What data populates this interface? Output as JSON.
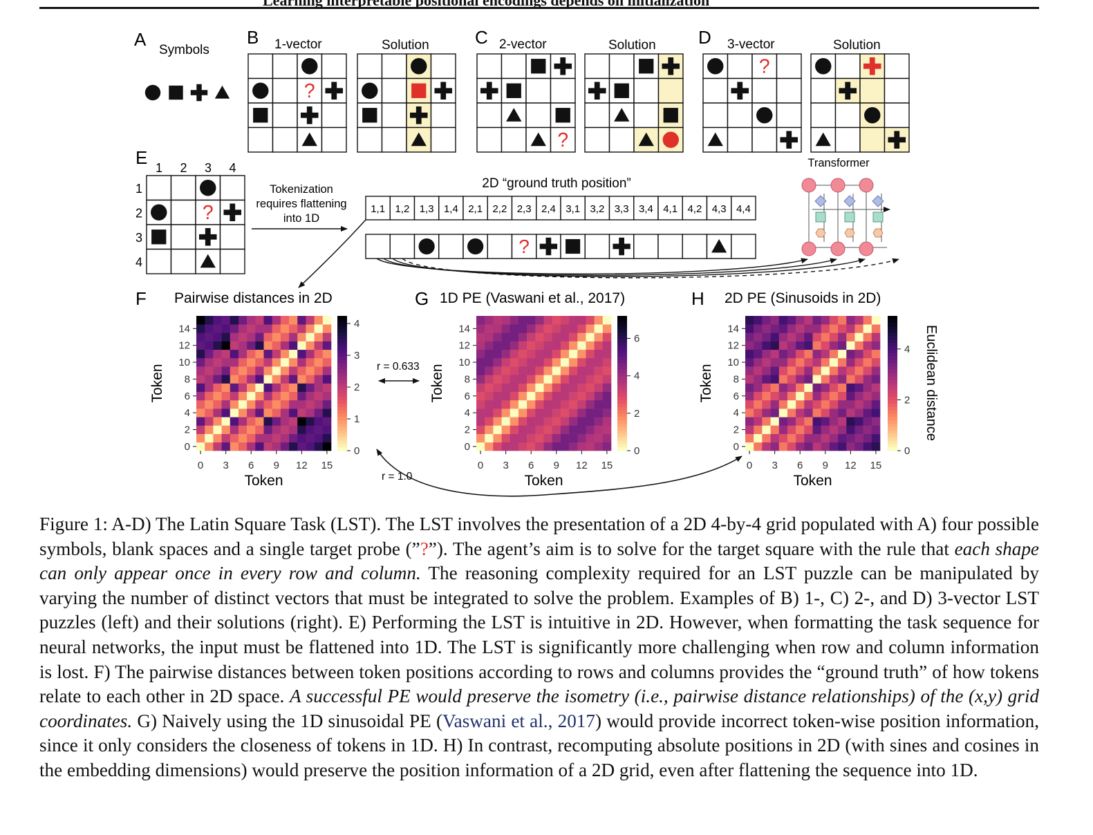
{
  "header": {
    "running_title": "Learning interpretable positional encodings depends on initialization"
  },
  "panels": {
    "A": {
      "letter": "A",
      "title": "Symbols",
      "symbols": [
        "circle",
        "square",
        "cross",
        "triangle"
      ]
    },
    "B": {
      "letter": "B",
      "title": "1-vector",
      "solution_title": "Solution",
      "puzzle": [
        [
          "",
          "",
          "circle",
          ""
        ],
        [
          "circle",
          "",
          "?",
          "cross"
        ],
        [
          "square",
          "",
          "cross",
          ""
        ],
        [
          "",
          "",
          "triangle",
          ""
        ]
      ],
      "solution": [
        [
          "",
          "",
          "circle",
          ""
        ],
        [
          "circle",
          "",
          "square-red",
          "cross"
        ],
        [
          "square",
          "",
          "cross",
          ""
        ],
        [
          "",
          "",
          "triangle",
          ""
        ]
      ],
      "highlight": [
        [
          0,
          2
        ],
        [
          1,
          2
        ],
        [
          2,
          2
        ],
        [
          3,
          2
        ]
      ]
    },
    "C": {
      "letter": "C",
      "title": "2-vector",
      "solution_title": "Solution",
      "puzzle": [
        [
          "",
          "",
          "square",
          "cross"
        ],
        [
          "cross",
          "square",
          "",
          ""
        ],
        [
          "",
          "triangle",
          "",
          "square"
        ],
        [
          "",
          "",
          "triangle",
          "?"
        ]
      ],
      "solution": [
        [
          "",
          "",
          "square",
          "cross"
        ],
        [
          "cross",
          "square",
          "",
          ""
        ],
        [
          "",
          "triangle",
          "",
          "square"
        ],
        [
          "",
          "",
          "triangle",
          "circle-red"
        ]
      ],
      "highlight": [
        [
          0,
          3
        ],
        [
          1,
          3
        ],
        [
          2,
          3
        ],
        [
          3,
          3
        ],
        [
          3,
          2
        ]
      ]
    },
    "D": {
      "letter": "D",
      "title": "3-vector",
      "solution_title": "Solution",
      "puzzle": [
        [
          "circle",
          "",
          "?",
          ""
        ],
        [
          "",
          "cross",
          "",
          ""
        ],
        [
          "",
          "",
          "circle",
          ""
        ],
        [
          "triangle",
          "",
          "",
          "cross"
        ]
      ],
      "solution": [
        [
          "circle",
          "",
          "cross-red",
          ""
        ],
        [
          "",
          "cross",
          "",
          ""
        ],
        [
          "",
          "",
          "circle",
          ""
        ],
        [
          "triangle",
          "",
          "",
          "cross"
        ]
      ],
      "highlight": [
        [
          0,
          2
        ],
        [
          1,
          1
        ],
        [
          1,
          2
        ],
        [
          2,
          2
        ],
        [
          3,
          2
        ],
        [
          3,
          3
        ]
      ]
    },
    "E": {
      "letter": "E",
      "col_labels": [
        "1",
        "2",
        "3",
        "4"
      ],
      "row_labels": [
        "1",
        "2",
        "3",
        "4"
      ],
      "grid": [
        [
          "",
          "",
          "circle",
          ""
        ],
        [
          "circle",
          "",
          "?",
          "cross"
        ],
        [
          "square",
          "",
          "cross",
          ""
        ],
        [
          "",
          "",
          "triangle",
          ""
        ]
      ],
      "arrow_text": [
        "Tokenization",
        "requires flattening",
        "into 1D"
      ],
      "sequence_title": "2D “ground truth position”",
      "positions": [
        "1,1",
        "1,2",
        "1,3",
        "1,4",
        "2,1",
        "2,2",
        "2,3",
        "2,4",
        "3,1",
        "3,2",
        "3,3",
        "3,4",
        "4,1",
        "4,2",
        "4,3",
        "4,4"
      ],
      "tokens": [
        "",
        "",
        "circle",
        "",
        "circle",
        "",
        "?",
        "cross",
        "square",
        "",
        "cross",
        "",
        "",
        "",
        "triangle",
        ""
      ],
      "transformer_label": "Transformer"
    },
    "F": {
      "letter": "F",
      "title": "Pairwise distances in 2D"
    },
    "G": {
      "letter": "G",
      "title": "1D PE (Vaswani et al., 2017)"
    },
    "H": {
      "letter": "H",
      "title": "2D PE (Sinusoids in 2D)",
      "colorbar_label": "Euclidean distance"
    },
    "annotations": {
      "r_fg": "r = 0.633",
      "r_fh": "r = 1.0"
    }
  },
  "chart_data": [
    {
      "type": "heatmap",
      "title": "Pairwise distances in 2D",
      "xlabel": "Token",
      "ylabel": "Token",
      "x_ticks": [
        0,
        3,
        6,
        9,
        12,
        15
      ],
      "y_ticks": [
        0,
        2,
        4,
        6,
        8,
        10,
        12,
        14
      ],
      "n": 16,
      "metric": "grid-euclidean",
      "colorbar": {
        "min": 0,
        "max": 4.24,
        "ticks": [
          0,
          1,
          2,
          3,
          4
        ]
      }
    },
    {
      "type": "heatmap",
      "title": "1D PE (Vaswani et al., 2017)",
      "xlabel": "Token",
      "ylabel": "Token",
      "x_ticks": [
        0,
        3,
        6,
        9,
        12,
        15
      ],
      "y_ticks": [
        0,
        2,
        4,
        6,
        8,
        10,
        12,
        14
      ],
      "n": 16,
      "metric": "1d-sinusoid-distance",
      "colorbar": {
        "min": 0,
        "max": 7.2,
        "ticks": [
          0,
          2,
          4,
          6
        ]
      }
    },
    {
      "type": "heatmap",
      "title": "2D PE (Sinusoids in 2D)",
      "xlabel": "Token",
      "ylabel": "Token",
      "x_ticks": [
        0,
        3,
        6,
        9,
        12,
        15
      ],
      "y_ticks": [
        0,
        2,
        4,
        6,
        8,
        10,
        12,
        14
      ],
      "n": 16,
      "metric": "2d-sinusoid-distance",
      "colorbar": {
        "min": 0,
        "max": 5.3,
        "ticks": [
          0,
          2,
          4
        ],
        "label": "Euclidean distance"
      }
    }
  ],
  "caption": {
    "p1": "Figure 1: A-D) The Latin Square Task (LST). The LST involves the presentation of a 2D 4-by-4 grid populated with A) four possible symbols, blank spaces and a single target probe (”",
    "q": "?",
    "p2": "”). The agent’s aim is to solve for the target square with the rule that ",
    "em1": "each shape can only appear once in every row and column.",
    "p3": " The reasoning complexity required for an LST puzzle can be manipulated by varying the number of distinct vectors that must be integrated to solve the problem. Examples of B) 1-, C) 2-, and D) 3-vector LST puzzles (left) and their solutions (right). E) Performing the LST is intuitive in 2D. However, when formatting the task sequence for neural networks, the input must be flattened into 1D. The LST is significantly more challenging when row and column information is lost. F) The pairwise distances between token positions according to rows and columns provides the “ground truth” of how tokens relate to each other in 2D space. ",
    "em2": "A successful PE would preserve the isometry (i.e., pairwise distance relationships) of the (x,y) grid coordinates.",
    "p4": " G) Naively using the 1D sinusoidal PE (",
    "cite": "Vaswani et al., 2017",
    "p5": ") would provide incorrect token-wise position information, since it only considers the closeness of tokens in 1D. H) In contrast, recomputing absolute positions in 2D (with sines and cosines in the embedding dimensions) would preserve the position information of a 2D grid, even after flattening the sequence into 1D."
  },
  "colors": {
    "highlight": "#fbf3c5",
    "red": "#e0302a",
    "node": "#f08a96",
    "diamond": "#aebce6",
    "square_node": "#a8dccb",
    "hex_node": "#f6c9a8"
  }
}
